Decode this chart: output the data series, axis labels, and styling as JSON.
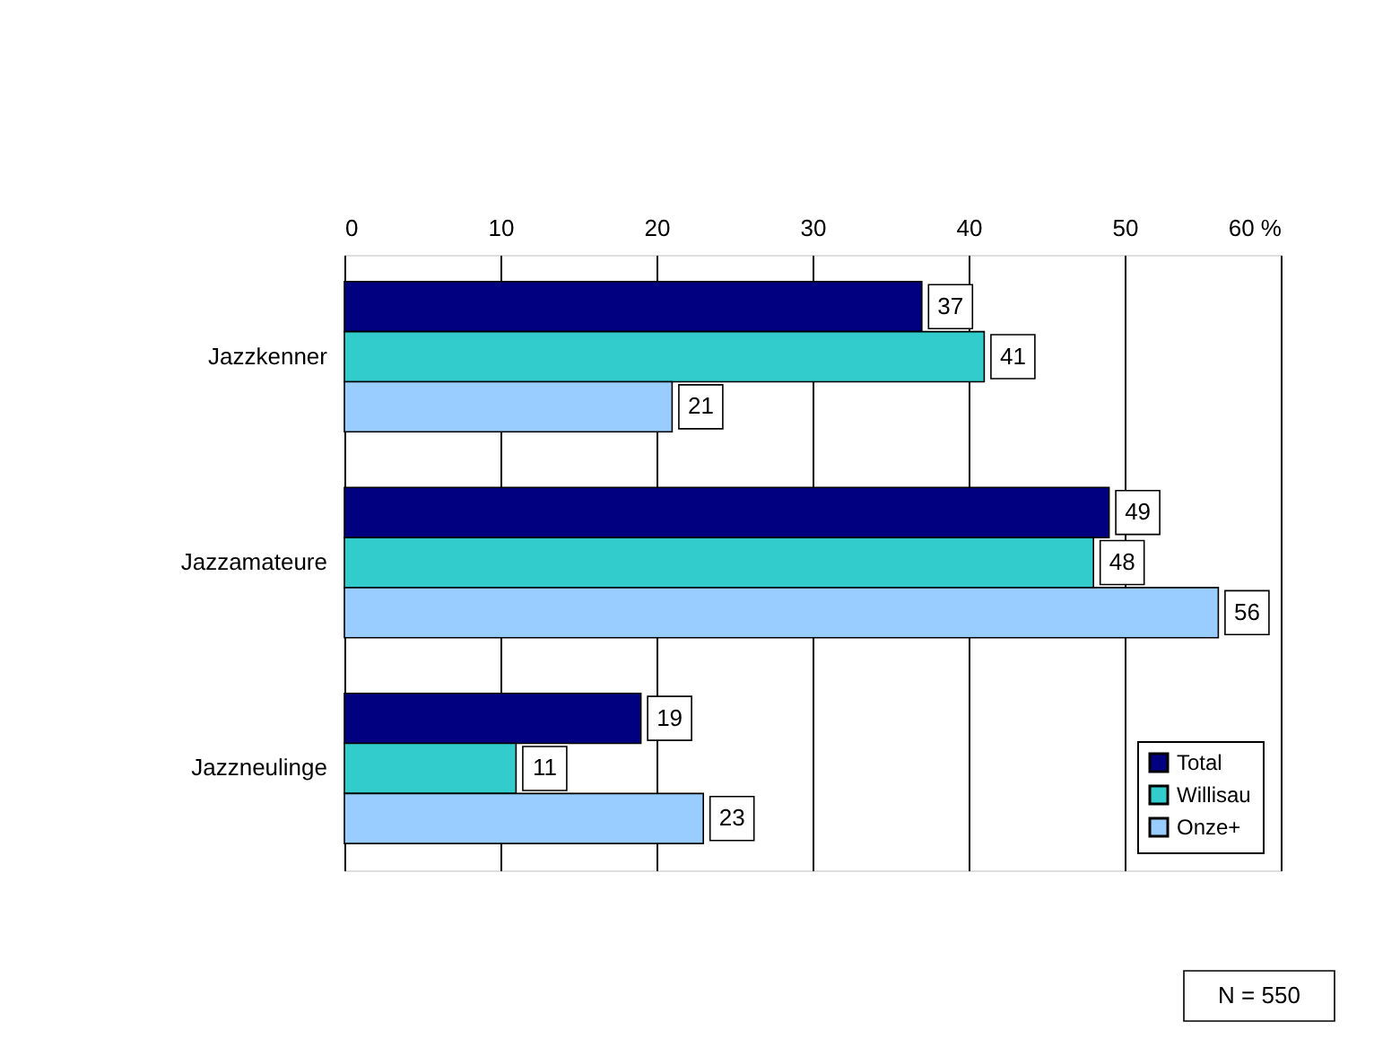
{
  "chart_data": {
    "type": "bar",
    "orientation": "horizontal",
    "categories": [
      "Jazzkenner",
      "Jazzamateure",
      "Jazzneulinge"
    ],
    "series": [
      {
        "name": "Total",
        "color": "#000080",
        "values": [
          37,
          49,
          19
        ]
      },
      {
        "name": "Willisau",
        "color": "#33cccc",
        "values": [
          41,
          48,
          11
        ]
      },
      {
        "name": "Onze+",
        "color": "#99ccff",
        "values": [
          21,
          56,
          23
        ]
      }
    ],
    "xlim": [
      0,
      60
    ],
    "xticks": [
      0,
      10,
      20,
      30,
      40,
      50,
      {
        "value": 60,
        "label": "60 %"
      }
    ],
    "grid": "x",
    "legend": "bottom right",
    "data_labels": true,
    "annotations": [
      "N = 550"
    ]
  }
}
